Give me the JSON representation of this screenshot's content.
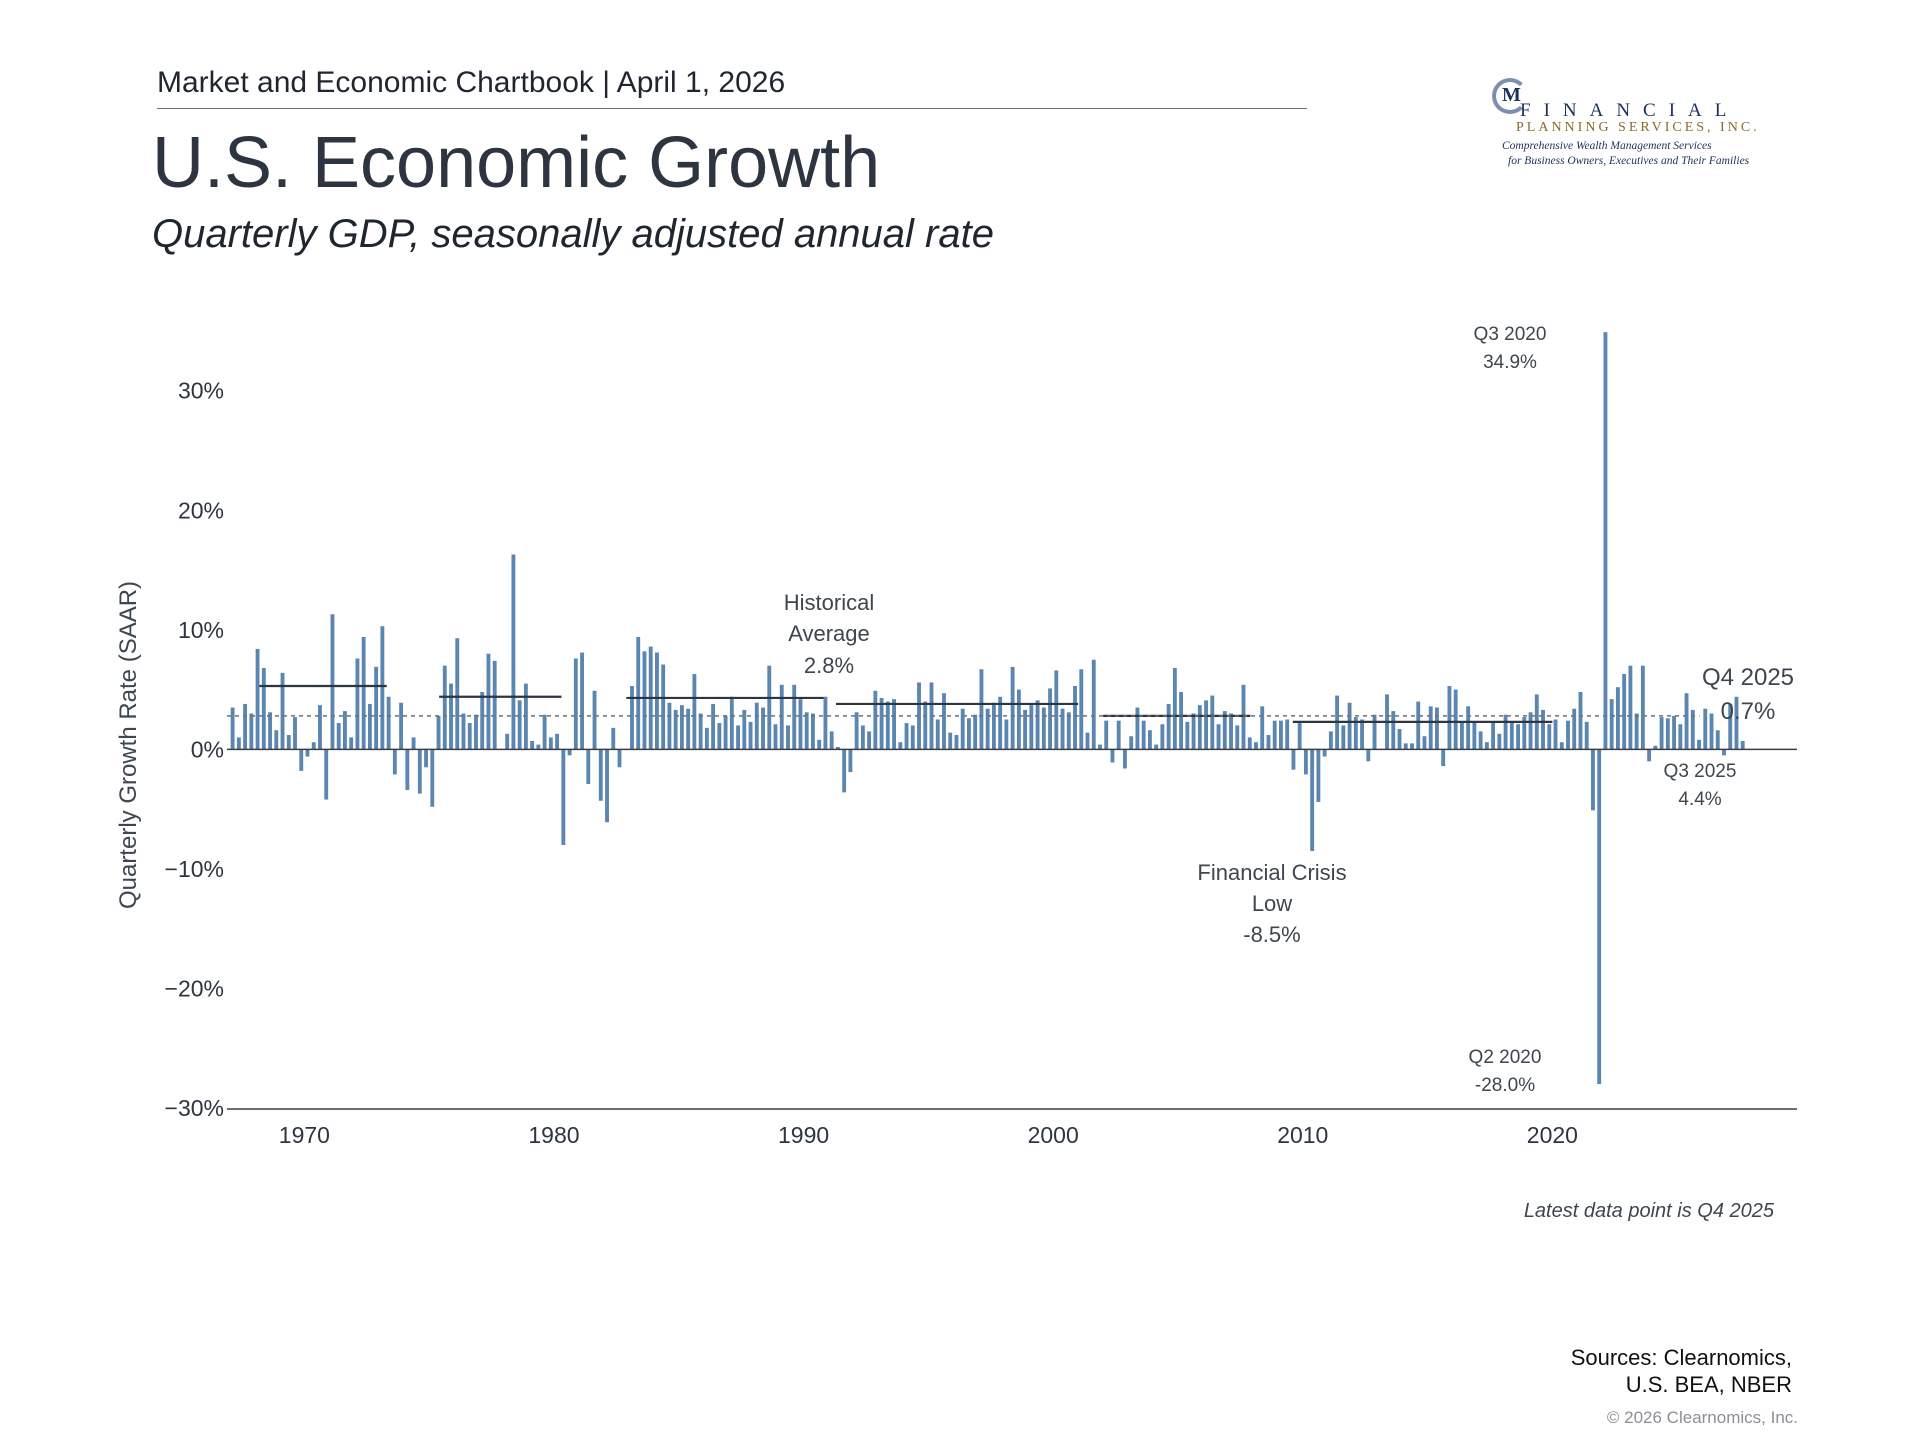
{
  "header": {
    "chartbook": "Market and Economic Chartbook | April 1, 2026",
    "title": "U.S. Economic Growth",
    "subtitle": "Quarterly GDP, seasonally adjusted annual rate"
  },
  "logo": {
    "mark": "M",
    "line1": "FINANCIAL",
    "line2": "PLANNING SERVICES, INC.",
    "line3": "Comprehensive Wealth Management Services",
    "line4": "for Business Owners, Executives and Their Families"
  },
  "colors": {
    "bar": "#5b86b0",
    "average": "#2d3540",
    "crisis": "#cc6b72",
    "text": "#2d3540"
  },
  "footer": {
    "latest_note": "Latest data point is Q4 2025",
    "sources_line1": "Sources: Clearnomics,",
    "sources_line2": "U.S. BEA, NBER",
    "copyright": "© 2026 Clearnomics, Inc."
  },
  "chart_data": {
    "type": "bar",
    "ylabel": "Quarterly Growth Rate (SAAR)",
    "ylim": [
      -30,
      36
    ],
    "y_ticks": [
      -30,
      -20,
      -10,
      0,
      10,
      20,
      30
    ],
    "y_tick_labels": [
      "−30%",
      "−20%",
      "−10%",
      "0%",
      "10%",
      "20%",
      "30%"
    ],
    "xlim": [
      1966.9,
      2029.8
    ],
    "x_ticks": [
      1970,
      1980,
      1990,
      2000,
      2010,
      2020
    ],
    "x_tick_labels": [
      "1970",
      "1980",
      "1990",
      "2000",
      "2010",
      "2020"
    ],
    "grid": false,
    "start_year": 1967,
    "start_quarter": 1,
    "values": [
      3.5,
      1.0,
      3.8,
      3.0,
      8.4,
      6.8,
      3.1,
      1.6,
      6.4,
      1.2,
      2.7,
      -1.8,
      -0.6,
      0.6,
      3.7,
      -4.2,
      11.3,
      2.2,
      3.2,
      1.0,
      7.6,
      9.4,
      3.8,
      6.9,
      10.3,
      4.4,
      -2.1,
      3.9,
      -3.4,
      1.0,
      -3.7,
      -1.5,
      -4.8,
      2.8,
      7.0,
      5.5,
      9.3,
      3.0,
      2.2,
      2.9,
      4.8,
      8.0,
      7.4,
      0.0,
      1.3,
      16.3,
      4.1,
      5.5,
      0.7,
      0.4,
      2.9,
      1.0,
      1.3,
      -8.0,
      -0.5,
      7.6,
      8.1,
      -2.9,
      4.9,
      -4.3,
      -6.1,
      1.8,
      -1.5,
      0.0,
      5.3,
      9.4,
      8.2,
      8.6,
      8.1,
      7.1,
      3.9,
      3.3,
      3.7,
      3.4,
      6.3,
      3.0,
      1.8,
      3.8,
      2.2,
      2.8,
      4.4,
      2.0,
      3.3,
      2.3,
      3.9,
      3.5,
      7.0,
      2.1,
      5.4,
      2.0,
      5.4,
      4.2,
      3.1,
      3.0,
      0.8,
      4.4,
      1.5,
      0.2,
      -3.6,
      -1.9,
      3.1,
      2.0,
      1.5,
      4.9,
      4.3,
      4.0,
      4.2,
      0.6,
      2.2,
      2.0,
      5.6,
      4.0,
      5.6,
      2.5,
      4.7,
      1.4,
      1.2,
      3.4,
      2.6,
      2.9,
      6.7,
      3.4,
      3.9,
      4.4,
      2.5,
      6.9,
      5.0,
      3.3,
      3.7,
      4.1,
      3.5,
      5.1,
      6.6,
      3.4,
      3.1,
      5.3,
      6.7,
      1.4,
      7.5,
      0.4,
      2.4,
      -1.1,
      2.4,
      -1.6,
      1.1,
      3.5,
      2.4,
      1.6,
      0.4,
      2.1,
      3.8,
      6.8,
      4.8,
      2.3,
      3.0,
      3.7,
      4.1,
      4.5,
      2.1,
      3.2,
      3.0,
      2.0,
      5.4,
      1.0,
      0.6,
      3.6,
      1.2,
      2.4,
      2.4,
      2.5,
      -1.7,
      2.2,
      -2.1,
      -8.5,
      -4.4,
      -0.6,
      1.5,
      4.5,
      2.0,
      3.9,
      2.7,
      2.5,
      -1.0,
      2.9,
      0.0,
      4.6,
      3.2,
      1.7,
      0.5,
      0.5,
      4.0,
      1.1,
      3.6,
      3.5,
      -1.4,
      5.3,
      5.0,
      2.3,
      3.6,
      2.3,
      1.5,
      0.6,
      2.3,
      1.3,
      2.9,
      2.2,
      2.1,
      2.7,
      3.1,
      4.6,
      3.3,
      2.1,
      2.5,
      0.6,
      2.4,
      3.4,
      4.8,
      2.3,
      -5.1,
      -28.0,
      34.9,
      4.2,
      5.2,
      6.3,
      7.0,
      3.0,
      7.0,
      -1.0,
      0.3,
      2.7,
      2.6,
      2.8,
      2.1,
      4.7,
      3.3,
      0.8,
      3.4,
      3.0,
      1.6,
      -0.5,
      3.8,
      4.4,
      0.7
    ],
    "period_averages": [
      {
        "x0": 1968.2,
        "x1": 1973.3,
        "y": 5.3
      },
      {
        "x0": 1975.4,
        "x1": 1980.3,
        "y": 4.4
      },
      {
        "x0": 1982.9,
        "x1": 1990.8,
        "y": 4.3
      },
      {
        "x0": 1991.3,
        "x1": 2001.0,
        "y": 3.8
      },
      {
        "x0": 2002.0,
        "x1": 2007.9,
        "y": 2.8
      },
      {
        "x0": 2009.6,
        "x1": 2020.0,
        "y": 2.3
      }
    ],
    "historical_average": {
      "label_line1": "Historical",
      "label_line2": "Average",
      "value_label": "2.8%",
      "value": 2.8
    },
    "annotations": {
      "q3_2020": {
        "label": "Q3 2020",
        "value_label": "34.9%"
      },
      "q2_2020": {
        "label": "Q2 2020",
        "value_label": "-28.0%"
      },
      "crisis": {
        "line1": "Financial Crisis",
        "line2": "Low",
        "value_label": "-8.5%"
      },
      "q4_2025": {
        "label": "Q4 2025",
        "value_label": "0.7%"
      },
      "q3_2025": {
        "label": "Q3 2025",
        "value_label": "4.4%"
      }
    }
  }
}
